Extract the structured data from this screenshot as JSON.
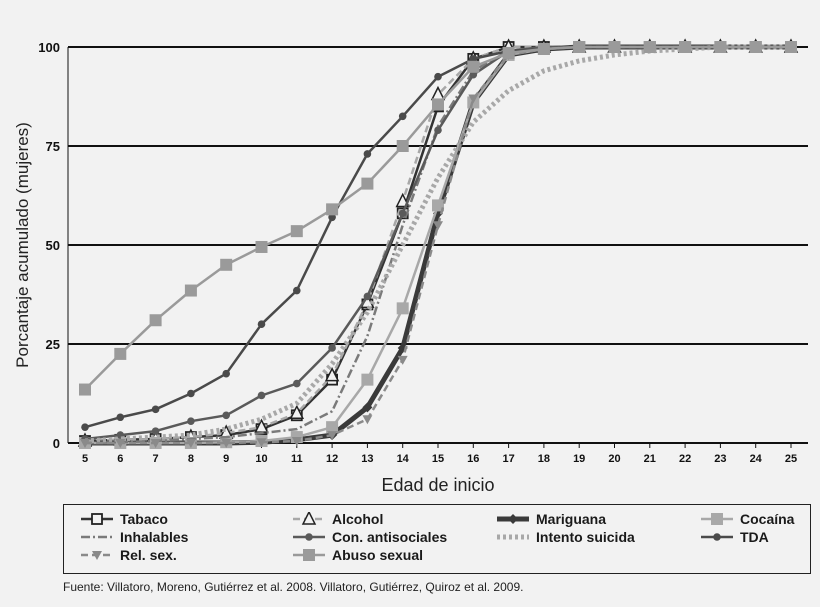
{
  "chart_data": {
    "type": "line",
    "title": "",
    "xlabel": "Edad de inicio",
    "ylabel": "Porcantaje acumulado (mujeres)",
    "x": [
      5,
      6,
      7,
      8,
      9,
      10,
      11,
      12,
      13,
      14,
      15,
      16,
      17,
      18,
      19,
      20,
      21,
      22,
      23,
      24,
      25
    ],
    "xlim": [
      5,
      25
    ],
    "ylim": [
      0,
      100
    ],
    "yticks": [
      0,
      25,
      50,
      75,
      100
    ],
    "grid": "horizontal",
    "legend_position": "bottom",
    "series": [
      {
        "name": "Tabaco",
        "color": "#333333",
        "style": "solid",
        "marker": "open-square",
        "values": [
          0.5,
          0.8,
          1,
          1.5,
          2,
          3.5,
          7,
          16,
          35,
          58,
          85,
          97,
          100,
          100,
          100,
          100,
          100,
          100,
          100,
          100,
          100
        ]
      },
      {
        "name": "Alcohol",
        "color": "#a8a8a8",
        "style": "dashed",
        "marker": "open-triangle",
        "values": [
          0.5,
          0.8,
          1,
          1.5,
          2.5,
          4,
          7.5,
          17,
          35.5,
          61,
          88,
          97,
          100,
          100,
          100,
          100,
          100,
          100,
          100,
          100,
          100
        ]
      },
      {
        "name": "Mariguana",
        "color": "#3a3a3a",
        "style": "solid",
        "marker": "diamond",
        "values": [
          0,
          0,
          0,
          0,
          0,
          0.2,
          0.8,
          2,
          9,
          24,
          58,
          86,
          98,
          99.5,
          100,
          100,
          100,
          100,
          100,
          100,
          100
        ]
      },
      {
        "name": "Cocaína",
        "color": "#a8a8a8",
        "style": "solid",
        "marker": "square",
        "values": [
          0,
          0,
          0,
          0,
          0.2,
          0.5,
          1.5,
          4,
          16,
          34,
          60,
          86,
          98,
          99.5,
          100,
          100,
          100,
          100,
          100,
          100,
          100
        ]
      },
      {
        "name": "Inhalables",
        "color": "#7a7a7a",
        "style": "dash-dot",
        "marker": "none",
        "values": [
          0,
          0.2,
          0.5,
          1,
          1.5,
          2.5,
          3.5,
          8,
          27,
          55,
          80,
          94,
          99,
          100,
          100,
          100,
          100,
          100,
          100,
          100,
          100
        ]
      },
      {
        "name": "Con. antisociales",
        "color": "#5a5a5a",
        "style": "solid",
        "marker": "dot",
        "values": [
          1,
          2,
          3,
          5.5,
          7,
          12,
          15,
          24,
          37,
          58,
          79,
          93,
          99,
          100,
          100,
          100,
          100,
          100,
          100,
          100,
          100
        ]
      },
      {
        "name": "Intento suicida",
        "color": "#a8a8a8",
        "style": "dotted",
        "marker": "none",
        "values": [
          0.5,
          1,
          1.5,
          2,
          3.5,
          6,
          10,
          20,
          33,
          50,
          67,
          81,
          89,
          94,
          96.5,
          98,
          99,
          99.5,
          100,
          100,
          100
        ]
      },
      {
        "name": "TDA",
        "color": "#4a4a4a",
        "style": "solid",
        "marker": "dot",
        "values": [
          4,
          6.5,
          8.5,
          12.5,
          17.5,
          30,
          38.5,
          57,
          73,
          82.5,
          92.5,
          97,
          99,
          99.5,
          100,
          100,
          100,
          100,
          100,
          100,
          100
        ]
      },
      {
        "name": "Rel. sex.",
        "color": "#8a8a8a",
        "style": "dashed",
        "marker": "triangle-down",
        "values": [
          0,
          0,
          0,
          0,
          0,
          0.2,
          0.5,
          2,
          6,
          21,
          55,
          87,
          98,
          99.5,
          100,
          100,
          100,
          100,
          100,
          100,
          100
        ]
      },
      {
        "name": "Abuso sexual",
        "color": "#9a9a9a",
        "style": "solid",
        "marker": "square",
        "values": [
          13.5,
          22.5,
          31,
          38.5,
          45,
          49.5,
          53.5,
          59,
          65.5,
          75,
          85.5,
          95,
          98.5,
          99.5,
          100,
          100,
          100,
          100,
          100,
          100,
          100
        ]
      }
    ]
  },
  "source": "Fuente: Villatoro, Moreno, Gutiérrez et al. 2008. Villatoro, Gutiérrez, Quiroz et al. 2009."
}
